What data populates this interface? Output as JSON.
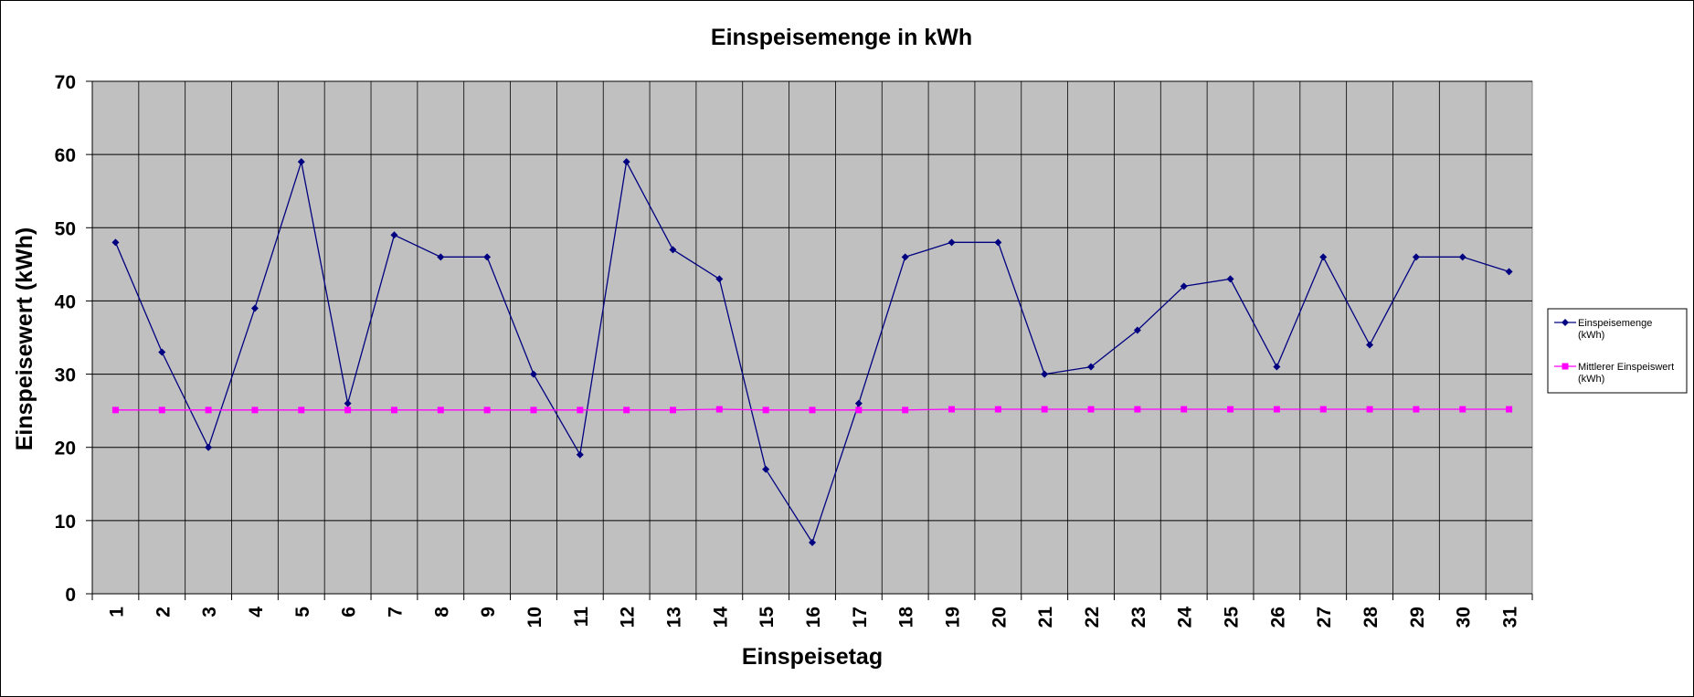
{
  "chart_data": {
    "type": "line",
    "title": "Einspeisemenge in kWh",
    "xlabel": "Einspeisetag",
    "ylabel": "Einspeisewert  (kWh)",
    "categories": [
      "1",
      "2",
      "3",
      "4",
      "5",
      "6",
      "7",
      "8",
      "9",
      "10",
      "11",
      "12",
      "13",
      "14",
      "15",
      "16",
      "17",
      "18",
      "19",
      "20",
      "21",
      "22",
      "23",
      "24",
      "25",
      "26",
      "27",
      "28",
      "29",
      "30",
      "31"
    ],
    "ylim": [
      0,
      70
    ],
    "yticks": [
      0,
      10,
      20,
      30,
      40,
      50,
      60,
      70
    ],
    "grid": true,
    "legend_position": "right",
    "plot_background": "#c0c0c0",
    "series": [
      {
        "name": "Einspeisemenge (kWh)",
        "legend_lines": [
          "Einspeisemenge",
          "(kWh)"
        ],
        "color": "#000080",
        "marker": "diamond",
        "values": [
          48,
          33,
          20,
          39,
          59,
          26,
          49,
          46,
          46,
          30,
          19,
          59,
          47,
          43,
          17,
          7,
          26,
          46,
          48,
          48,
          30,
          31,
          36,
          42,
          43,
          31,
          46,
          34,
          46,
          46,
          44
        ]
      },
      {
        "name": "Mittlerer Einspeiswert (kWh)",
        "legend_lines": [
          "Mittlerer Einspeiswert",
          "(kWh)"
        ],
        "color": "#ff00ff",
        "marker": "square",
        "values": [
          25.1,
          25.1,
          25.1,
          25.1,
          25.1,
          25.1,
          25.1,
          25.1,
          25.1,
          25.1,
          25.1,
          25.1,
          25.1,
          25.2,
          25.1,
          25.1,
          25.1,
          25.1,
          25.2,
          25.2,
          25.2,
          25.2,
          25.2,
          25.2,
          25.2,
          25.2,
          25.2,
          25.2,
          25.2,
          25.2,
          25.2
        ]
      }
    ]
  }
}
